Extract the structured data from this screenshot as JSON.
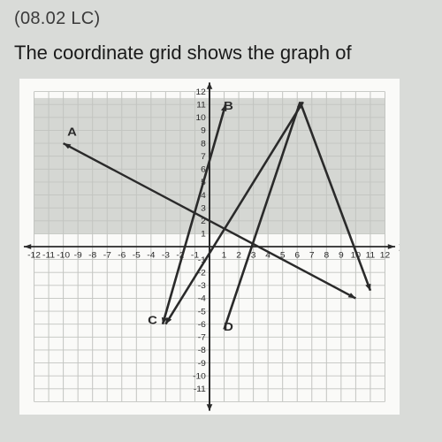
{
  "question_ref": "(08.02 LC)",
  "prompt": "The coordinate grid shows the graph of",
  "chart": {
    "type": "line",
    "background_color": "#fafaf8",
    "grid_color": "#c2c4c0",
    "axis_color": "#2a2a2a",
    "shade_band_color": "#d5d7d3",
    "xlim": [
      -12,
      12
    ],
    "ylim": [
      -12,
      12
    ],
    "grid_step": 1,
    "x_ticks": [
      -12,
      -11,
      -10,
      -9,
      -8,
      -7,
      -6,
      -5,
      -4,
      -3,
      -2,
      -1,
      1,
      2,
      3,
      4,
      5,
      6,
      7,
      8,
      9,
      10,
      11,
      12
    ],
    "y_ticks": [
      -11,
      -10,
      -9,
      -8,
      -7,
      -6,
      -5,
      -4,
      -3,
      -2,
      -1,
      1,
      2,
      3,
      4,
      5,
      6,
      7,
      8,
      9,
      10,
      11,
      12
    ],
    "tick_fontsize": 7,
    "label_fontsize": 10,
    "x_axis_label": "x",
    "y_axis_label": "y",
    "shade_upper": [
      1,
      11.5
    ],
    "lines": [
      {
        "id": "A",
        "label": "A",
        "label_pos": [
          -9.4,
          8.6
        ],
        "color": "#2a2a2a",
        "p1": [
          -10,
          8
        ],
        "p2": [
          10,
          -4
        ],
        "arrows": "both"
      },
      {
        "id": "B",
        "label": "B",
        "label_pos": [
          1.3,
          10.6
        ],
        "color": "#2a2a2a",
        "p1": [
          -3.2,
          -6.0
        ],
        "p2": [
          1.1,
          11.0
        ],
        "arrows": "both"
      },
      {
        "id": "C",
        "label": "C",
        "label_pos": [
          -3.9,
          -6.0
        ],
        "color": "#2a2a2a",
        "p1": [
          -3,
          -6
        ],
        "p2": [
          6.4,
          11.2
        ],
        "arrows": "both"
      },
      {
        "id": "D",
        "label": "D",
        "label_pos": [
          1.3,
          -6.5
        ],
        "color": "#2a2a2a",
        "p1": [
          6.2,
          11.2
        ],
        "p2": [
          1.0,
          -6.4
        ],
        "arrows": "none"
      },
      {
        "id": "E",
        "label": "",
        "label_pos": [
          0,
          0
        ],
        "color": "#2a2a2a",
        "p1": [
          6.2,
          11.2
        ],
        "p2": [
          11,
          -3.4
        ],
        "arrows": "end"
      }
    ]
  }
}
